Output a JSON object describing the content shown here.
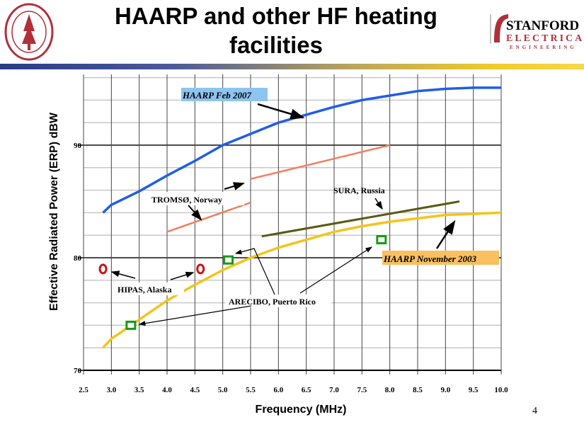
{
  "slide": {
    "title": "HAARP and other HF heating facilities",
    "page_number": "4",
    "seal_text": "LELAND STANFORD JUNIOR UNIVERSITY · ORGANIZED 1891",
    "logo_text": {
      "line1": "STANFORD",
      "line2": "ELECTRICAL",
      "line3": "ENGINEERING"
    }
  },
  "chart_data": {
    "type": "line",
    "title": "",
    "xlabel": "Frequency (MHz)",
    "ylabel": "Effective Radiated Power (ERP) dBW",
    "xlim": [
      2.5,
      10.0
    ],
    "ylim": [
      70,
      96.3
    ],
    "x_ticks": [
      "2.5",
      "3.0",
      "3.5",
      "4.0",
      "4.5",
      "5.0",
      "5.5",
      "6.0",
      "6.5",
      "7.0",
      "7.5",
      "8.0",
      "8.5",
      "9.0",
      "9.5",
      "10.0"
    ],
    "y_ticks": [
      "70",
      "80",
      "90"
    ],
    "grid": true,
    "colors": {
      "haarp_2007": "#1f5ee6",
      "tromso": "#f08060",
      "sura": "#5a5a10",
      "haarp_2003": "#f5c418",
      "hipas": "#cc1111",
      "arecibo": "#169a16"
    },
    "series": [
      {
        "name": "HAARP Feb 2007",
        "x": [
          2.85,
          3.0,
          3.5,
          4.0,
          4.5,
          5.0,
          5.5,
          6.0,
          6.5,
          7.0,
          7.5,
          8.0,
          8.5,
          9.0,
          9.5,
          10.0
        ],
        "y": [
          84.0,
          84.7,
          85.9,
          87.3,
          88.6,
          90.0,
          91.0,
          92.0,
          92.7,
          93.4,
          94.0,
          94.4,
          94.8,
          95.0,
          95.1,
          95.1
        ]
      },
      {
        "name": "TROMSØ, Norway",
        "segments": [
          {
            "x": [
              4.0,
              5.5
            ],
            "y": [
              82.3,
              84.9
            ]
          },
          {
            "x": [
              5.5,
              8.0
            ],
            "y": [
              87.0,
              90.0
            ]
          }
        ]
      },
      {
        "name": "SURA, Russia",
        "x": [
          5.7,
          9.25
        ],
        "y": [
          81.9,
          85.0
        ]
      },
      {
        "name": "HAARP November 2003",
        "x": [
          2.85,
          3.0,
          3.5,
          4.0,
          4.5,
          5.0,
          5.5,
          6.0,
          6.5,
          7.0,
          7.5,
          8.0,
          8.5,
          9.0,
          9.5,
          10.0
        ],
        "y": [
          72.0,
          72.8,
          74.5,
          76.2,
          77.6,
          78.9,
          80.0,
          80.9,
          81.6,
          82.3,
          82.8,
          83.2,
          83.5,
          83.8,
          83.9,
          84.0
        ]
      },
      {
        "name": "HIPAS, Alaska",
        "points": [
          [
            2.85,
            79.0
          ],
          [
            4.6,
            79.0
          ]
        ]
      },
      {
        "name": "ARECIBO, Puerto Rico",
        "points": [
          [
            3.35,
            74.0
          ],
          [
            5.1,
            79.8
          ],
          [
            7.85,
            81.6
          ]
        ]
      }
    ]
  }
}
